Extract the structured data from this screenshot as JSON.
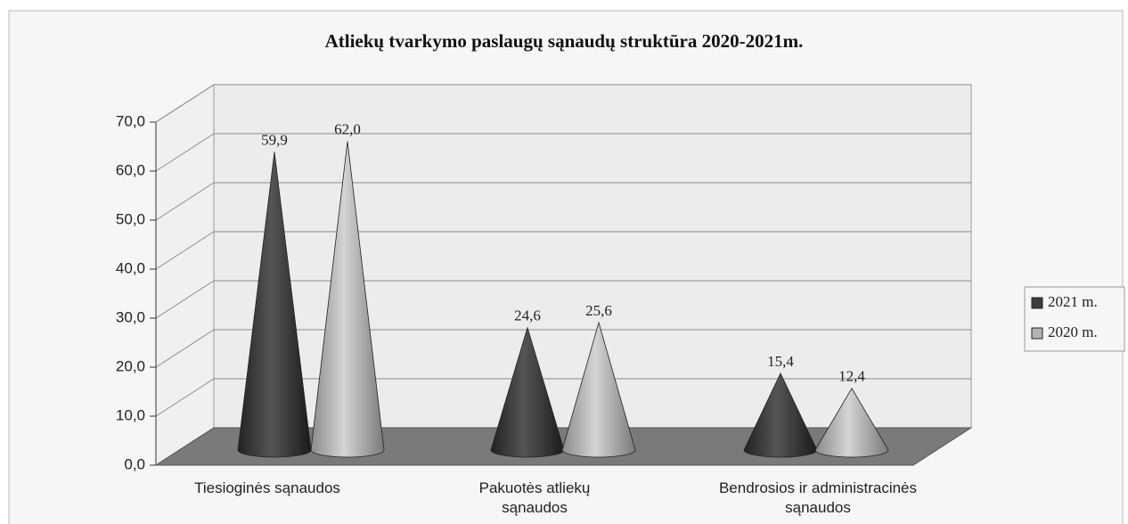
{
  "chart_data": {
    "type": "cone3d",
    "title": "Atliekų tvarkymo paslaugų sąnaudų struktūra 2020-2021m.",
    "categories": [
      "Tiesioginės sąnaudos",
      "Pakuotės atliekų sąnaudos",
      "Bendrosios ir administracinės sąnaudos"
    ],
    "series": [
      {
        "name": "2021 m.",
        "color": "#3c3c3c",
        "values": [
          59.9,
          24.6,
          15.4
        ],
        "value_labels": [
          "59,9",
          "24,6",
          "15,4"
        ]
      },
      {
        "name": "2020 m.",
        "color": "#b4b4b4",
        "values": [
          62.0,
          25.6,
          12.4
        ],
        "value_labels": [
          "62,0",
          "25,6",
          "12,4"
        ]
      }
    ],
    "ylim": [
      0,
      70
    ],
    "yticks": [
      {
        "value": 0,
        "label": "0,0"
      },
      {
        "value": 10,
        "label": "10,0"
      },
      {
        "value": 20,
        "label": "20,0"
      },
      {
        "value": 30,
        "label": "30,0"
      },
      {
        "value": 40,
        "label": "40,0"
      },
      {
        "value": 50,
        "label": "50,0"
      },
      {
        "value": 60,
        "label": "60,0"
      },
      {
        "value": 70,
        "label": "70,0"
      }
    ],
    "grid": true,
    "legend": "right"
  }
}
